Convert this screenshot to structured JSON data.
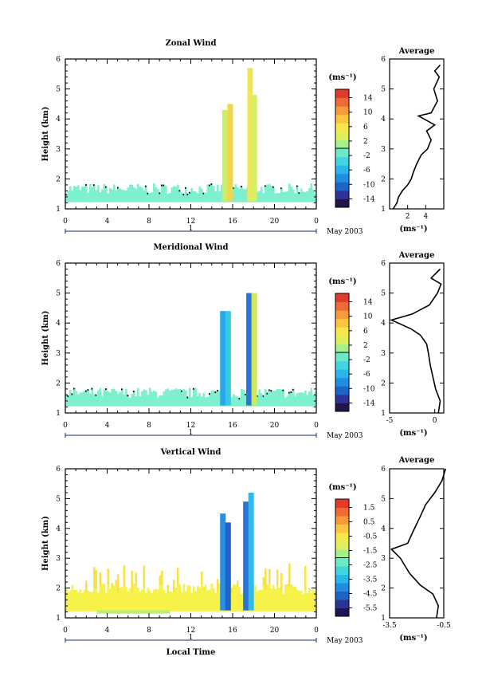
{
  "colors": {
    "cb_zonal": [
      "#24134e",
      "#2a3596",
      "#1f62c8",
      "#1e8fe0",
      "#27b7e8",
      "#3fd6e0",
      "#6de9c8",
      "#a8f08c",
      "#dcef5c",
      "#f6e64a",
      "#fbc53e",
      "#f8993a",
      "#f06a35",
      "#e23b2d"
    ],
    "cb_vertical": [
      "#24134e",
      "#2a3596",
      "#1f62c8",
      "#1e8fe0",
      "#27b7e8",
      "#3fd6e0",
      "#6de9c8",
      "#a8f08c",
      "#dcef5c",
      "#f6e64a",
      "#fbc53e",
      "#f8993a",
      "#f06a35",
      "#e23b2d"
    ],
    "field_cyan": "#7ff0cf",
    "field_yellow": "#f6f24a"
  },
  "chart_data": [
    {
      "type": "heatmap",
      "title": "Zonal Wind",
      "ylabel": "Height (km)",
      "ylim": [
        1,
        6
      ],
      "x_ticks": [
        "0",
        "4",
        "8",
        "12",
        "16",
        "20",
        "0"
      ],
      "day_marker": "1",
      "date_label": "May 2003",
      "colorbar_unit": "(ms⁻¹)",
      "colorbar_ticks": [
        "14",
        "10",
        "6",
        "2",
        "-2",
        "-6",
        "-10",
        "-14"
      ],
      "average": {
        "title": "Average",
        "xlabel": "(ms⁻¹)",
        "xlim": [
          0,
          6
        ],
        "x_ticks": [
          "2",
          "4"
        ],
        "profile": [
          [
            0.4,
            1.0
          ],
          [
            0.8,
            1.2
          ],
          [
            1.0,
            1.4
          ],
          [
            1.4,
            1.6
          ],
          [
            2.0,
            1.8
          ],
          [
            2.4,
            2.0
          ],
          [
            2.6,
            2.2
          ],
          [
            3.0,
            2.5
          ],
          [
            3.5,
            2.8
          ],
          [
            4.2,
            3.0
          ],
          [
            4.6,
            3.3
          ],
          [
            4.1,
            3.6
          ],
          [
            5.0,
            3.8
          ],
          [
            3.2,
            4.1
          ],
          [
            4.6,
            4.2
          ],
          [
            5.3,
            4.6
          ],
          [
            4.9,
            5.0
          ],
          [
            5.5,
            5.4
          ],
          [
            5.0,
            5.6
          ],
          [
            5.6,
            5.8
          ]
        ]
      }
    },
    {
      "type": "heatmap",
      "title": "Meridional Wind",
      "ylabel": "Height (km)",
      "ylim": [
        1,
        6
      ],
      "x_ticks": [
        "0",
        "4",
        "8",
        "12",
        "16",
        "20",
        "0"
      ],
      "day_marker": "1",
      "date_label": "May 2003",
      "colorbar_unit": "(ms⁻¹)",
      "colorbar_ticks": [
        "14",
        "10",
        "6",
        "2",
        "-2",
        "-6",
        "-10",
        "-14"
      ],
      "average": {
        "title": "Average",
        "xlabel": "(ms⁻¹)",
        "xlim": [
          -5,
          1
        ],
        "x_ticks": [
          "-5",
          "0"
        ],
        "profile": [
          [
            0.4,
            1.0
          ],
          [
            0.6,
            1.4
          ],
          [
            0.1,
            1.8
          ],
          [
            -0.2,
            2.2
          ],
          [
            -0.5,
            2.6
          ],
          [
            -0.7,
            3.0
          ],
          [
            -0.9,
            3.3
          ],
          [
            -1.6,
            3.6
          ],
          [
            -2.6,
            3.8
          ],
          [
            -4.8,
            4.1
          ],
          [
            -2.5,
            4.3
          ],
          [
            -0.6,
            4.6
          ],
          [
            0.3,
            5.0
          ],
          [
            0.7,
            5.3
          ],
          [
            -0.4,
            5.5
          ],
          [
            0.6,
            5.8
          ]
        ]
      }
    },
    {
      "type": "heatmap",
      "title": "Vertical Wind",
      "ylabel": "Height (km)",
      "xlabel": "Local Time",
      "ylim": [
        1,
        6
      ],
      "x_ticks": [
        "0",
        "4",
        "8",
        "12",
        "16",
        "20",
        "0"
      ],
      "day_marker": "1",
      "date_label": "May 2003",
      "colorbar_unit": "(ms⁻¹)",
      "colorbar_ticks": [
        "1.5",
        "0.5",
        "-0.5",
        "-1.5",
        "-2.5",
        "-3.5",
        "-4.5",
        "-5.5"
      ],
      "average": {
        "title": "Average",
        "xlabel": "(ms⁻¹)",
        "xlim": [
          -3.5,
          -0.5
        ],
        "x_ticks": [
          "-3.5",
          "-0.5"
        ],
        "profile": [
          [
            -0.9,
            1.0
          ],
          [
            -0.8,
            1.4
          ],
          [
            -1.1,
            1.8
          ],
          [
            -1.8,
            2.1
          ],
          [
            -2.4,
            2.5
          ],
          [
            -2.9,
            3.0
          ],
          [
            -3.4,
            3.3
          ],
          [
            -2.5,
            3.5
          ],
          [
            -2.2,
            3.9
          ],
          [
            -1.8,
            4.4
          ],
          [
            -1.5,
            4.8
          ],
          [
            -1.0,
            5.2
          ],
          [
            -0.6,
            5.6
          ],
          [
            -0.4,
            6.0
          ]
        ]
      }
    }
  ]
}
